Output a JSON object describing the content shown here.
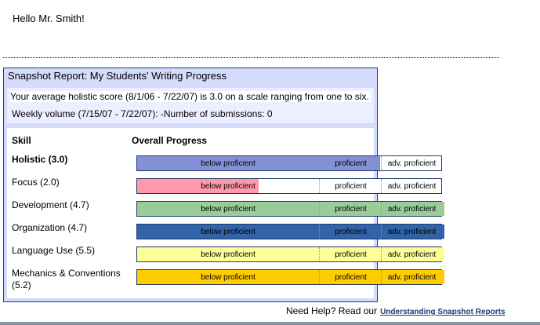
{
  "greeting": "Hello Mr. Smith!",
  "report": {
    "title": "Snapshot Report: My Students' Writing Progress",
    "avg_line": "Your average holistic score (8/1/06 - 7/22/07) is 3.0 on a scale ranging from one to six.",
    "weekly_line": "Weekly volume (7/15/07 - 7/22/07): -Number of submissions: 0",
    "col_skill": "Skill",
    "col_progress": "Overall Progress",
    "bands": [
      "below proficient",
      "proficient",
      "adv. proficient"
    ],
    "skills": [
      {
        "label": "Holistic (3.0)",
        "score": 3.0,
        "color": "#8490d4",
        "bold": true
      },
      {
        "label": "Focus (2.0)",
        "score": 2.0,
        "color": "#ff99aa"
      },
      {
        "label": "Development (4.7)",
        "score": 4.7,
        "color": "#99cc99"
      },
      {
        "label": "Organization (4.7)",
        "score": 4.7,
        "color": "#3063a8"
      },
      {
        "label": "Language Use (5.5)",
        "score": 5.5,
        "color": "#ffff99"
      },
      {
        "label": "Mechanics & Conventions (5.2)",
        "score": 5.2,
        "color": "#ffcc00"
      }
    ]
  },
  "help": {
    "text": "Need Help? Read our",
    "link": "Understanding Snapshot Reports"
  }
}
